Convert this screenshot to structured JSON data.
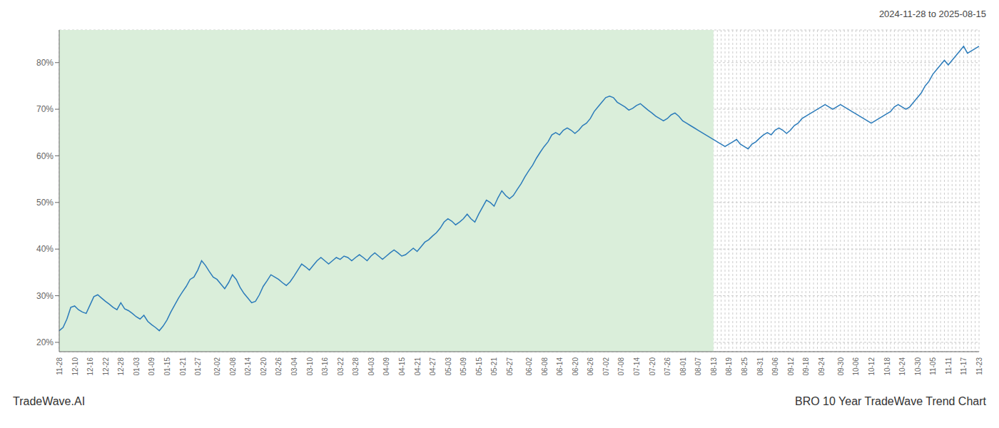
{
  "chart_data": {
    "type": "line",
    "title": "BRO 10 Year TradeWave Trend Chart",
    "subtitle": "2024-11-28 to 2025-08-15",
    "annotations": [
      "TradeWave.AI"
    ],
    "color": "#2b7bba",
    "line_style": "solid",
    "grid": true,
    "shaded_region": {
      "end": "08-13",
      "color": "#daeeda"
    },
    "ylim": [
      18,
      87
    ],
    "yticks": [
      {
        "value": 20,
        "label": "20%"
      },
      {
        "value": 30,
        "label": "30%"
      },
      {
        "value": 40,
        "label": "40%"
      },
      {
        "value": 50,
        "label": "50%"
      },
      {
        "value": 60,
        "label": "60%"
      },
      {
        "value": 70,
        "label": "70%"
      },
      {
        "value": 80,
        "label": "80%"
      }
    ],
    "categories": [
      "11-28",
      null,
      null,
      null,
      "12-10",
      null,
      null,
      null,
      "12-16",
      null,
      null,
      null,
      "12-22",
      null,
      null,
      null,
      "12-28",
      null,
      null,
      null,
      "01-03",
      null,
      null,
      null,
      "01-09",
      null,
      null,
      null,
      "01-15",
      null,
      null,
      null,
      "01-21",
      null,
      null,
      null,
      "01-27",
      null,
      null,
      null,
      null,
      "02-02",
      null,
      null,
      null,
      "02-08",
      null,
      null,
      null,
      "02-14",
      null,
      null,
      null,
      "02-20",
      null,
      null,
      null,
      "02-26",
      null,
      null,
      null,
      "03-04",
      null,
      null,
      null,
      "03-10",
      null,
      null,
      null,
      "03-16",
      null,
      null,
      null,
      "03-22",
      null,
      null,
      null,
      "03-28",
      null,
      null,
      null,
      "04-03",
      null,
      null,
      null,
      "04-09",
      null,
      null,
      null,
      "04-15",
      null,
      null,
      null,
      "04-21",
      null,
      null,
      null,
      "04-27",
      null,
      null,
      null,
      "05-03",
      null,
      null,
      null,
      "05-09",
      null,
      null,
      null,
      "05-15",
      null,
      null,
      null,
      "05-21",
      null,
      null,
      null,
      "05-27",
      null,
      null,
      null,
      null,
      "06-02",
      null,
      null,
      null,
      "06-08",
      null,
      null,
      null,
      "06-14",
      null,
      null,
      null,
      "06-20",
      null,
      null,
      null,
      "06-26",
      null,
      null,
      null,
      "07-02",
      null,
      null,
      null,
      "07-08",
      null,
      null,
      null,
      "07-14",
      null,
      null,
      null,
      "07-20",
      null,
      null,
      null,
      "07-26",
      null,
      null,
      null,
      "08-01",
      null,
      null,
      null,
      "08-07",
      null,
      null,
      null,
      "08-13",
      null,
      null,
      null,
      "08-19",
      null,
      null,
      null,
      "08-25",
      null,
      null,
      null,
      "08-31",
      null,
      null,
      null,
      "09-06",
      null,
      null,
      null,
      "09-12",
      null,
      null,
      null,
      "09-18",
      null,
      null,
      null,
      "09-24",
      null,
      null,
      null,
      null,
      "09-30",
      null,
      null,
      null,
      "10-06",
      null,
      null,
      null,
      "10-12",
      null,
      null,
      null,
      "10-18",
      null,
      null,
      null,
      "10-24",
      null,
      null,
      null,
      "10-30",
      null,
      null,
      null,
      "11-05",
      null,
      null,
      null,
      "11-11",
      null,
      null,
      null,
      "11-17",
      null,
      null,
      null,
      "11-23"
    ],
    "values": [
      22.5,
      23.2,
      25.0,
      27.5,
      27.8,
      27.0,
      26.5,
      26.2,
      28.0,
      29.8,
      30.2,
      29.5,
      28.8,
      28.2,
      27.5,
      27.0,
      28.5,
      27.2,
      26.8,
      26.2,
      25.5,
      25.0,
      25.8,
      24.5,
      23.8,
      23.2,
      22.5,
      23.5,
      24.8,
      26.5,
      28.0,
      29.5,
      30.8,
      32.0,
      33.5,
      34.0,
      35.5,
      37.5,
      36.5,
      35.2,
      34.0,
      33.5,
      32.5,
      31.5,
      32.8,
      34.5,
      33.5,
      31.8,
      30.5,
      29.5,
      28.5,
      28.8,
      30.2,
      32.0,
      33.2,
      34.5,
      34.0,
      33.5,
      32.8,
      32.2,
      33.0,
      34.2,
      35.5,
      36.8,
      36.2,
      35.5,
      36.5,
      37.5,
      38.2,
      37.5,
      36.8,
      37.5,
      38.2,
      37.8,
      38.5,
      38.2,
      37.5,
      38.2,
      38.8,
      38.2,
      37.5,
      38.5,
      39.2,
      38.5,
      37.8,
      38.5,
      39.2,
      39.8,
      39.2,
      38.5,
      38.8,
      39.5,
      40.2,
      39.5,
      40.5,
      41.5,
      42.0,
      42.8,
      43.5,
      44.5,
      45.8,
      46.5,
      46.0,
      45.2,
      45.8,
      46.5,
      47.5,
      46.5,
      45.8,
      47.5,
      49.0,
      50.5,
      50.0,
      49.2,
      51.0,
      52.5,
      51.5,
      50.8,
      51.5,
      52.8,
      54.0,
      55.5,
      56.8,
      58.0,
      59.5,
      60.8,
      62.0,
      63.0,
      64.5,
      65.0,
      64.5,
      65.5,
      66.0,
      65.5,
      64.8,
      65.5,
      66.5,
      67.0,
      68.0,
      69.5,
      70.5,
      71.5,
      72.5,
      72.8,
      72.5,
      71.5,
      71.0,
      70.5,
      69.8,
      70.2,
      70.8,
      71.2,
      70.5,
      69.8,
      69.2,
      68.5,
      68.0,
      67.5,
      68.0,
      68.8,
      69.2,
      68.5,
      67.5,
      67.0,
      66.5,
      66.0,
      65.5,
      65.0,
      64.5,
      64.0,
      63.5,
      63.0,
      62.5,
      62.0,
      62.5,
      63.0,
      63.5,
      62.5,
      62.0,
      61.5,
      62.5,
      63.0,
      63.8,
      64.5,
      65.0,
      64.5,
      65.5,
      66.0,
      65.5,
      64.8,
      65.5,
      66.5,
      67.0,
      68.0,
      68.5,
      69.0,
      69.5,
      70.0,
      70.5,
      71.0,
      70.5,
      70.0,
      70.5,
      71.0,
      70.5,
      70.0,
      69.5,
      69.0,
      68.5,
      68.0,
      67.5,
      67.0,
      67.5,
      68.0,
      68.5,
      69.0,
      69.5,
      70.5,
      71.0,
      70.5,
      70.0,
      70.5,
      71.5,
      72.5,
      73.5,
      75.0,
      76.0,
      77.5,
      78.5,
      79.5,
      80.5,
      79.5,
      80.5,
      81.5,
      82.5,
      83.5,
      82.0,
      82.5,
      83.0,
      83.5
    ]
  }
}
